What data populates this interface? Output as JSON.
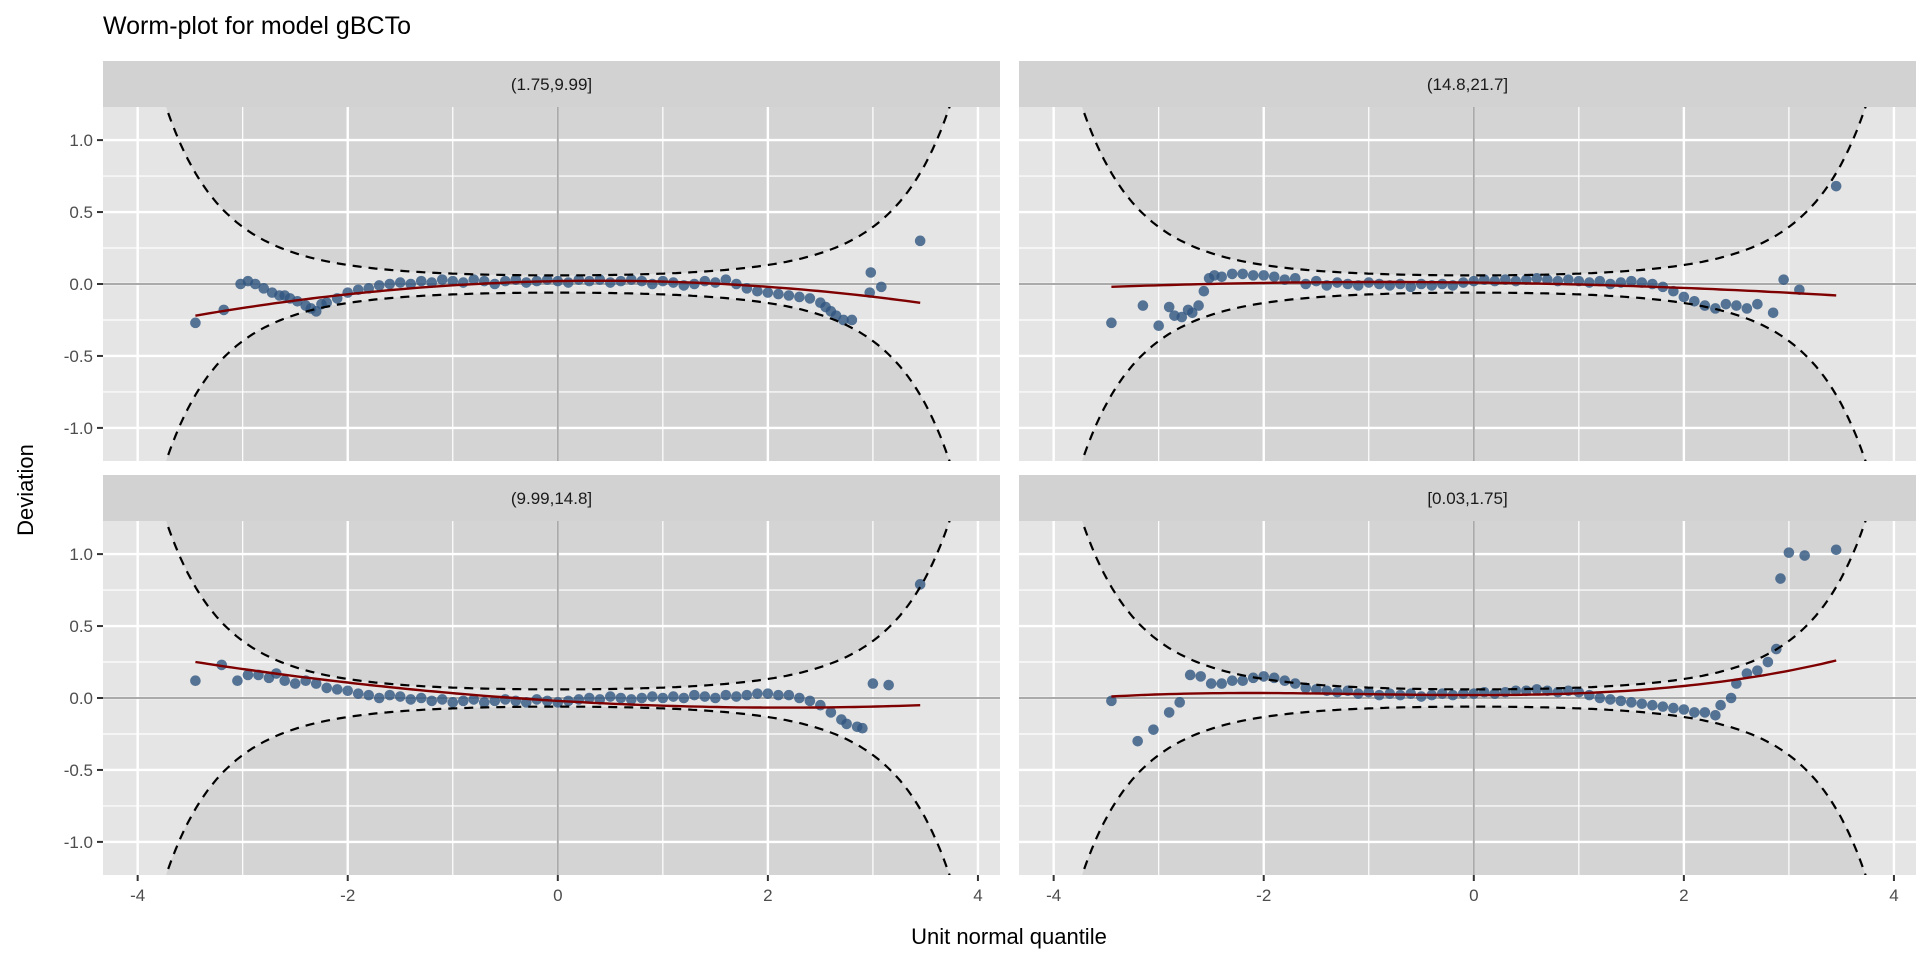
{
  "chart_data": {
    "type": "scatter",
    "title": "Worm-plot for model gBCTo",
    "xlabel": "Unit normal quantile",
    "ylabel": "Deviation",
    "xlim": [
      -4.33,
      4.21
    ],
    "ylim": [
      -1.23,
      1.23
    ],
    "x_ticks": [
      -4,
      -2,
      0,
      2,
      4
    ],
    "x_tick_labels": [
      "-4",
      "-2",
      "0",
      "2",
      "4"
    ],
    "y_ticks": [
      -1.0,
      -0.5,
      0.0,
      0.5,
      1.0
    ],
    "y_tick_labels": [
      "-1.0",
      "-0.5",
      "0.0",
      "0.5",
      "1.0"
    ],
    "grid": true,
    "colors": {
      "points": "#2F5580",
      "fit": "#7F0000",
      "envelope": "#000000",
      "panel": "#E5E5E5",
      "shade": "#D4D4D4",
      "strip": "#D2D2D2",
      "refline": "#AAAAAA"
    },
    "envelope": {
      "n": 1680,
      "level": 0.95,
      "shade_range": [
        -3.95,
        3.8
      ]
    },
    "panels": [
      {
        "label": "(1.75,9.99]",
        "fit_poly": [
          0.02,
          0.013,
          -0.0164,
          0
        ],
        "points": [
          [
            -3.45,
            -0.27
          ],
          [
            -3.18,
            -0.18
          ],
          [
            -3.02,
            0.0
          ],
          [
            -2.95,
            0.02
          ],
          [
            -2.88,
            0.0
          ],
          [
            -2.8,
            -0.03
          ],
          [
            -2.72,
            -0.06
          ],
          [
            -2.65,
            -0.08
          ],
          [
            -2.6,
            -0.08
          ],
          [
            -2.55,
            -0.1
          ],
          [
            -2.48,
            -0.12
          ],
          [
            -2.4,
            -0.15
          ],
          [
            -2.35,
            -0.17
          ],
          [
            -2.3,
            -0.19
          ],
          [
            -2.25,
            -0.14
          ],
          [
            -2.2,
            -0.13
          ],
          [
            -2.1,
            -0.1
          ],
          [
            -2.0,
            -0.06
          ],
          [
            -1.9,
            -0.04
          ],
          [
            -1.8,
            -0.03
          ],
          [
            -1.7,
            -0.01
          ],
          [
            -1.6,
            0.0
          ],
          [
            -1.5,
            0.01
          ],
          [
            -1.4,
            0.0
          ],
          [
            -1.3,
            0.02
          ],
          [
            -1.2,
            0.01
          ],
          [
            -1.1,
            0.03
          ],
          [
            -1.0,
            0.02
          ],
          [
            -0.9,
            0.01
          ],
          [
            -0.8,
            0.03
          ],
          [
            -0.7,
            0.02
          ],
          [
            -0.6,
            0.0
          ],
          [
            -0.5,
            0.02
          ],
          [
            -0.4,
            0.03
          ],
          [
            -0.3,
            0.01
          ],
          [
            -0.2,
            0.02
          ],
          [
            -0.1,
            0.03
          ],
          [
            0.0,
            0.02
          ],
          [
            0.1,
            0.01
          ],
          [
            0.2,
            0.03
          ],
          [
            0.3,
            0.02
          ],
          [
            0.4,
            0.03
          ],
          [
            0.5,
            0.01
          ],
          [
            0.6,
            0.02
          ],
          [
            0.7,
            0.03
          ],
          [
            0.8,
            0.02
          ],
          [
            0.9,
            0.0
          ],
          [
            1.0,
            0.02
          ],
          [
            1.1,
            0.01
          ],
          [
            1.2,
            -0.01
          ],
          [
            1.3,
            0.0
          ],
          [
            1.4,
            0.02
          ],
          [
            1.5,
            0.01
          ],
          [
            1.6,
            0.03
          ],
          [
            1.7,
            0.0
          ],
          [
            1.8,
            -0.03
          ],
          [
            1.9,
            -0.05
          ],
          [
            2.0,
            -0.06
          ],
          [
            2.1,
            -0.07
          ],
          [
            2.2,
            -0.08
          ],
          [
            2.3,
            -0.09
          ],
          [
            2.4,
            -0.1
          ],
          [
            2.5,
            -0.13
          ],
          [
            2.55,
            -0.16
          ],
          [
            2.6,
            -0.19
          ],
          [
            2.65,
            -0.22
          ],
          [
            2.72,
            -0.25
          ],
          [
            2.8,
            -0.25
          ],
          [
            2.97,
            -0.06
          ],
          [
            2.98,
            0.08
          ],
          [
            3.08,
            -0.02
          ],
          [
            3.45,
            0.3
          ]
        ]
      },
      {
        "label": "(14.8,21.7]",
        "fit_poly": [
          0.01,
          -0.0087,
          -0.005,
          0
        ],
        "points": [
          [
            -3.45,
            -0.27
          ],
          [
            -3.15,
            -0.15
          ],
          [
            -3.0,
            -0.29
          ],
          [
            -2.9,
            -0.16
          ],
          [
            -2.85,
            -0.22
          ],
          [
            -2.78,
            -0.23
          ],
          [
            -2.72,
            -0.18
          ],
          [
            -2.68,
            -0.2
          ],
          [
            -2.62,
            -0.15
          ],
          [
            -2.57,
            -0.05
          ],
          [
            -2.52,
            0.04
          ],
          [
            -2.47,
            0.06
          ],
          [
            -2.4,
            0.05
          ],
          [
            -2.3,
            0.07
          ],
          [
            -2.2,
            0.07
          ],
          [
            -2.1,
            0.06
          ],
          [
            -2.0,
            0.06
          ],
          [
            -1.9,
            0.05
          ],
          [
            -1.8,
            0.03
          ],
          [
            -1.7,
            0.04
          ],
          [
            -1.6,
            0.0
          ],
          [
            -1.5,
            0.02
          ],
          [
            -1.4,
            -0.01
          ],
          [
            -1.3,
            0.01
          ],
          [
            -1.2,
            0.0
          ],
          [
            -1.1,
            -0.01
          ],
          [
            -1.0,
            0.01
          ],
          [
            -0.9,
            0.0
          ],
          [
            -0.8,
            -0.01
          ],
          [
            -0.7,
            0.0
          ],
          [
            -0.6,
            -0.02
          ],
          [
            -0.5,
            0.0
          ],
          [
            -0.4,
            -0.01
          ],
          [
            -0.3,
            0.0
          ],
          [
            -0.2,
            -0.01
          ],
          [
            -0.1,
            0.01
          ],
          [
            0.0,
            0.02
          ],
          [
            0.1,
            0.03
          ],
          [
            0.2,
            0.02
          ],
          [
            0.3,
            0.03
          ],
          [
            0.4,
            0.02
          ],
          [
            0.5,
            0.03
          ],
          [
            0.6,
            0.04
          ],
          [
            0.7,
            0.03
          ],
          [
            0.8,
            0.02
          ],
          [
            0.9,
            0.03
          ],
          [
            1.0,
            0.02
          ],
          [
            1.1,
            0.01
          ],
          [
            1.2,
            0.02
          ],
          [
            1.3,
            0.0
          ],
          [
            1.4,
            0.01
          ],
          [
            1.5,
            0.02
          ],
          [
            1.6,
            0.01
          ],
          [
            1.7,
            0.0
          ],
          [
            1.8,
            -0.02
          ],
          [
            1.9,
            -0.05
          ],
          [
            2.0,
            -0.09
          ],
          [
            2.1,
            -0.12
          ],
          [
            2.2,
            -0.15
          ],
          [
            2.3,
            -0.17
          ],
          [
            2.4,
            -0.14
          ],
          [
            2.5,
            -0.15
          ],
          [
            2.6,
            -0.17
          ],
          [
            2.7,
            -0.14
          ],
          [
            2.85,
            -0.2
          ],
          [
            2.95,
            0.03
          ],
          [
            3.1,
            -0.04
          ],
          [
            3.45,
            0.68
          ]
        ]
      },
      {
        "label": "(9.99,14.8]",
        "fit_poly": [
          -0.02,
          -0.0435,
          0.0101,
          0
        ],
        "points": [
          [
            -3.45,
            0.12
          ],
          [
            -3.2,
            0.23
          ],
          [
            -3.05,
            0.12
          ],
          [
            -2.95,
            0.16
          ],
          [
            -2.85,
            0.16
          ],
          [
            -2.75,
            0.14
          ],
          [
            -2.68,
            0.17
          ],
          [
            -2.6,
            0.12
          ],
          [
            -2.5,
            0.1
          ],
          [
            -2.4,
            0.12
          ],
          [
            -2.3,
            0.1
          ],
          [
            -2.2,
            0.07
          ],
          [
            -2.1,
            0.06
          ],
          [
            -2.0,
            0.05
          ],
          [
            -1.9,
            0.03
          ],
          [
            -1.8,
            0.02
          ],
          [
            -1.7,
            0.0
          ],
          [
            -1.6,
            0.02
          ],
          [
            -1.5,
            0.01
          ],
          [
            -1.4,
            -0.01
          ],
          [
            -1.3,
            0.0
          ],
          [
            -1.2,
            -0.02
          ],
          [
            -1.1,
            -0.01
          ],
          [
            -1.0,
            -0.03
          ],
          [
            -0.9,
            -0.02
          ],
          [
            -0.8,
            -0.01
          ],
          [
            -0.7,
            -0.03
          ],
          [
            -0.6,
            -0.02
          ],
          [
            -0.5,
            -0.01
          ],
          [
            -0.4,
            -0.02
          ],
          [
            -0.3,
            -0.03
          ],
          [
            -0.2,
            -0.01
          ],
          [
            -0.1,
            -0.02
          ],
          [
            0.0,
            -0.03
          ],
          [
            0.1,
            -0.02
          ],
          [
            0.2,
            -0.01
          ],
          [
            0.3,
            0.0
          ],
          [
            0.4,
            -0.01
          ],
          [
            0.5,
            0.01
          ],
          [
            0.6,
            0.0
          ],
          [
            0.7,
            -0.01
          ],
          [
            0.8,
            0.0
          ],
          [
            0.9,
            0.01
          ],
          [
            1.0,
            0.0
          ],
          [
            1.1,
            0.01
          ],
          [
            1.2,
            0.0
          ],
          [
            1.3,
            0.02
          ],
          [
            1.4,
            0.01
          ],
          [
            1.5,
            0.0
          ],
          [
            1.6,
            0.02
          ],
          [
            1.7,
            0.01
          ],
          [
            1.8,
            0.02
          ],
          [
            1.9,
            0.03
          ],
          [
            2.0,
            0.03
          ],
          [
            2.1,
            0.02
          ],
          [
            2.2,
            0.02
          ],
          [
            2.3,
            0.0
          ],
          [
            2.4,
            -0.02
          ],
          [
            2.5,
            -0.05
          ],
          [
            2.6,
            -0.1
          ],
          [
            2.7,
            -0.15
          ],
          [
            2.75,
            -0.18
          ],
          [
            2.85,
            -0.2
          ],
          [
            2.9,
            -0.21
          ],
          [
            3.0,
            0.1
          ],
          [
            3.15,
            0.09
          ],
          [
            3.45,
            0.79
          ]
        ]
      },
      {
        "label": "[0.03,1.75]",
        "fit_poly": [
          0.02,
          0,
          0.0097,
          0.00305
        ],
        "points": [
          [
            -3.45,
            -0.02
          ],
          [
            -3.2,
            -0.3
          ],
          [
            -3.05,
            -0.22
          ],
          [
            -2.9,
            -0.1
          ],
          [
            -2.8,
            -0.03
          ],
          [
            -2.7,
            0.16
          ],
          [
            -2.6,
            0.15
          ],
          [
            -2.5,
            0.1
          ],
          [
            -2.4,
            0.1
          ],
          [
            -2.3,
            0.12
          ],
          [
            -2.2,
            0.12
          ],
          [
            -2.1,
            0.14
          ],
          [
            -2.0,
            0.15
          ],
          [
            -1.9,
            0.14
          ],
          [
            -1.8,
            0.12
          ],
          [
            -1.7,
            0.1
          ],
          [
            -1.6,
            0.07
          ],
          [
            -1.5,
            0.06
          ],
          [
            -1.4,
            0.05
          ],
          [
            -1.3,
            0.04
          ],
          [
            -1.2,
            0.05
          ],
          [
            -1.1,
            0.03
          ],
          [
            -1.0,
            0.04
          ],
          [
            -0.9,
            0.02
          ],
          [
            -0.8,
            0.03
          ],
          [
            -0.7,
            0.02
          ],
          [
            -0.6,
            0.03
          ],
          [
            -0.5,
            0.01
          ],
          [
            -0.4,
            0.02
          ],
          [
            -0.3,
            0.03
          ],
          [
            -0.2,
            0.02
          ],
          [
            -0.1,
            0.03
          ],
          [
            0.0,
            0.03
          ],
          [
            0.1,
            0.04
          ],
          [
            0.2,
            0.03
          ],
          [
            0.3,
            0.04
          ],
          [
            0.4,
            0.05
          ],
          [
            0.5,
            0.05
          ],
          [
            0.6,
            0.06
          ],
          [
            0.7,
            0.05
          ],
          [
            0.8,
            0.04
          ],
          [
            0.9,
            0.05
          ],
          [
            1.0,
            0.04
          ],
          [
            1.1,
            0.02
          ],
          [
            1.2,
            0.0
          ],
          [
            1.3,
            -0.01
          ],
          [
            1.4,
            -0.02
          ],
          [
            1.5,
            -0.03
          ],
          [
            1.6,
            -0.04
          ],
          [
            1.7,
            -0.05
          ],
          [
            1.8,
            -0.06
          ],
          [
            1.9,
            -0.07
          ],
          [
            2.0,
            -0.08
          ],
          [
            2.1,
            -0.1
          ],
          [
            2.2,
            -0.1
          ],
          [
            2.3,
            -0.12
          ],
          [
            2.35,
            -0.05
          ],
          [
            2.45,
            0.0
          ],
          [
            2.5,
            0.1
          ],
          [
            2.6,
            0.17
          ],
          [
            2.7,
            0.19
          ],
          [
            2.8,
            0.25
          ],
          [
            2.88,
            0.34
          ],
          [
            2.92,
            0.83
          ],
          [
            3.0,
            1.01
          ],
          [
            3.15,
            0.99
          ],
          [
            3.45,
            1.03
          ]
        ]
      }
    ]
  }
}
